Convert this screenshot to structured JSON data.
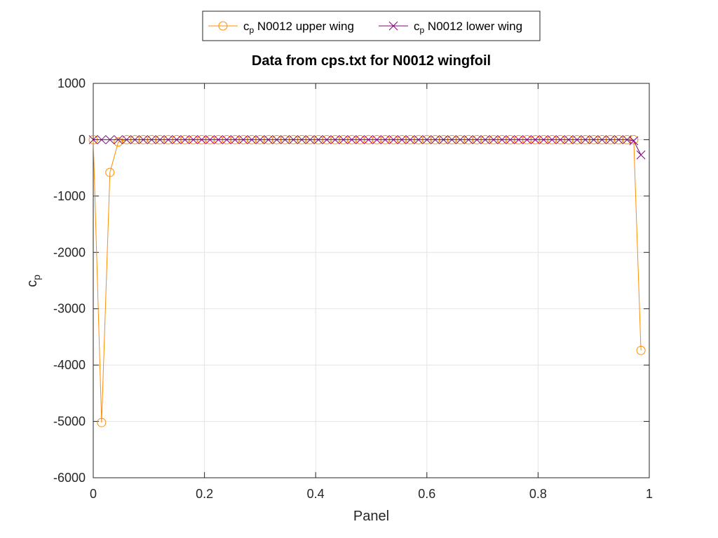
{
  "chart_data": {
    "type": "line",
    "title": "Data from cps.txt for N0012 wingfoil",
    "xlabel": "Panel",
    "ylabel": {
      "base": "c",
      "sub": "p"
    },
    "xlim": [
      0,
      1
    ],
    "ylim": [
      -6000,
      1000
    ],
    "xticks": [
      0,
      0.2,
      0.4,
      0.6,
      0.8,
      1
    ],
    "yticks": [
      1000,
      0,
      -1000,
      -2000,
      -3000,
      -4000,
      -5000,
      -6000
    ],
    "xtick_labels": [
      "0",
      "0.2",
      "0.4",
      "0.6",
      "0.8",
      "1"
    ],
    "ytick_labels": [
      "1000",
      "0",
      "-1000",
      "-2000",
      "-3000",
      "-4000",
      "-5000",
      "-6000"
    ],
    "grid": true,
    "legend_position": "top-outside",
    "series": [
      {
        "name": "N0012 upper wing",
        "label": {
          "base": "c",
          "sub": "p",
          "text": " N0012 upper wing"
        },
        "color": "#ff8c00",
        "marker": "circle",
        "x": [
          0.0,
          0.015,
          0.03,
          0.045,
          0.06,
          0.075,
          0.09,
          0.105,
          0.12,
          0.135,
          0.15,
          0.165,
          0.18,
          0.195,
          0.21,
          0.225,
          0.24,
          0.255,
          0.27,
          0.285,
          0.3,
          0.315,
          0.33,
          0.345,
          0.36,
          0.375,
          0.39,
          0.405,
          0.42,
          0.435,
          0.45,
          0.465,
          0.48,
          0.495,
          0.51,
          0.525,
          0.54,
          0.555,
          0.57,
          0.585,
          0.6,
          0.615,
          0.63,
          0.645,
          0.66,
          0.675,
          0.69,
          0.705,
          0.72,
          0.735,
          0.75,
          0.765,
          0.78,
          0.795,
          0.81,
          0.825,
          0.84,
          0.855,
          0.87,
          0.885,
          0.9,
          0.915,
          0.93,
          0.945,
          0.96,
          0.972,
          0.985
        ],
        "y": [
          0,
          -5020,
          -580,
          -40,
          0,
          0,
          0,
          0,
          0,
          0,
          0,
          0,
          0,
          0,
          0,
          0,
          0,
          0,
          0,
          0,
          0,
          0,
          0,
          0,
          0,
          0,
          0,
          0,
          0,
          0,
          0,
          0,
          0,
          0,
          0,
          0,
          0,
          0,
          0,
          0,
          0,
          0,
          0,
          0,
          0,
          0,
          0,
          0,
          0,
          0,
          0,
          0,
          0,
          0,
          0,
          0,
          0,
          0,
          0,
          0,
          0,
          0,
          0,
          0,
          0,
          0,
          -3740
        ]
      },
      {
        "name": "N0012 lower wing",
        "label": {
          "base": "c",
          "sub": "p",
          "text": " N0012 lower wing"
        },
        "color": "#800080",
        "marker": "x",
        "x": [
          0.0,
          0.015,
          0.03,
          0.045,
          0.06,
          0.075,
          0.09,
          0.105,
          0.12,
          0.135,
          0.15,
          0.165,
          0.18,
          0.195,
          0.21,
          0.225,
          0.24,
          0.255,
          0.27,
          0.285,
          0.3,
          0.315,
          0.33,
          0.345,
          0.36,
          0.375,
          0.39,
          0.405,
          0.42,
          0.435,
          0.45,
          0.465,
          0.48,
          0.495,
          0.51,
          0.525,
          0.54,
          0.555,
          0.57,
          0.585,
          0.6,
          0.615,
          0.63,
          0.645,
          0.66,
          0.675,
          0.69,
          0.705,
          0.72,
          0.735,
          0.75,
          0.765,
          0.78,
          0.795,
          0.81,
          0.825,
          0.84,
          0.855,
          0.87,
          0.885,
          0.9,
          0.915,
          0.93,
          0.945,
          0.96,
          0.972,
          0.985
        ],
        "y": [
          0,
          0,
          0,
          0,
          0,
          0,
          0,
          0,
          0,
          0,
          0,
          0,
          0,
          0,
          0,
          0,
          0,
          0,
          0,
          0,
          0,
          0,
          0,
          0,
          0,
          0,
          0,
          0,
          0,
          0,
          0,
          0,
          0,
          0,
          0,
          0,
          0,
          0,
          0,
          0,
          0,
          0,
          0,
          0,
          0,
          0,
          0,
          0,
          0,
          0,
          0,
          0,
          0,
          0,
          0,
          0,
          0,
          0,
          0,
          0,
          0,
          0,
          0,
          0,
          0,
          -20,
          -270
        ]
      }
    ]
  }
}
